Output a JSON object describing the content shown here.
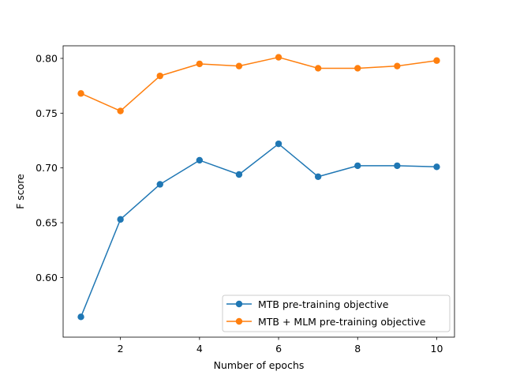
{
  "chart_data": {
    "type": "line",
    "title": "",
    "xlabel": "Number of epochs",
    "ylabel": "F score",
    "xlim": [
      0.55,
      10.45
    ],
    "ylim": [
      0.5455,
      0.8115
    ],
    "xticks": [
      2,
      4,
      6,
      8,
      10
    ],
    "yticks": [
      0.6,
      0.65,
      0.7,
      0.75,
      0.8
    ],
    "xtick_labels": [
      "2",
      "4",
      "6",
      "8",
      "10"
    ],
    "ytick_labels": [
      "0.60",
      "0.65",
      "0.70",
      "0.75",
      "0.80"
    ],
    "grid": false,
    "legend_position": "lower-right",
    "x": [
      1,
      2,
      3,
      4,
      5,
      6,
      7,
      8,
      9,
      10
    ],
    "series": [
      {
        "name": "MTB pre-training objective",
        "color": "#1f77b4",
        "marker": "circle",
        "values": [
          0.564,
          0.653,
          0.685,
          0.707,
          0.694,
          0.722,
          0.692,
          0.702,
          0.702,
          0.701
        ]
      },
      {
        "name": "MTB + MLM pre-training objective",
        "color": "#ff7f0e",
        "marker": "circle",
        "values": [
          0.768,
          0.752,
          0.784,
          0.795,
          0.793,
          0.801,
          0.791,
          0.791,
          0.793,
          0.798
        ]
      }
    ]
  }
}
